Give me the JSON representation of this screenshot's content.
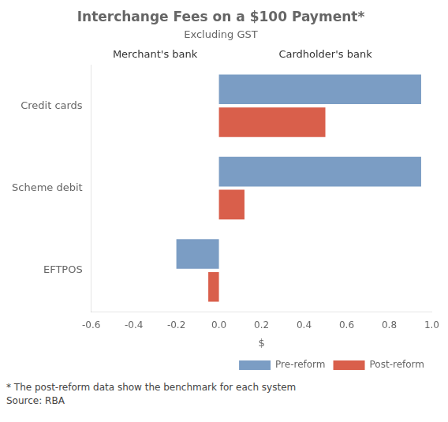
{
  "chart_data": {
    "type": "bar",
    "orientation": "horizontal",
    "title": "Interchange Fees on a $100 Payment*",
    "subtitle": "Excluding GST",
    "xlabel": "$",
    "categories": [
      "Credit cards",
      "Scheme debit",
      "EFTPOS"
    ],
    "series": [
      {
        "name": "Pre-reform",
        "color": "#7B9DC4",
        "values": [
          0.95,
          0.95,
          -0.2
        ]
      },
      {
        "name": "Post-reform",
        "color": "#D95F4B",
        "values": [
          0.5,
          0.12,
          -0.05
        ]
      }
    ],
    "xlim": [
      -0.6,
      1.0
    ],
    "xticks": [
      -0.6,
      -0.4,
      -0.2,
      {
        "value": 0.0,
        "label": "0.0"
      },
      0.2,
      0.4,
      0.6,
      0.8,
      {
        "value": 1.0,
        "label": "1.0"
      }
    ],
    "annotations": [
      "Merchant's bank",
      "Cardholder's bank",
      "* The post-reform data show the benchmark for each system",
      "Source: RBA"
    ],
    "legend": "lower right",
    "grid": false
  }
}
